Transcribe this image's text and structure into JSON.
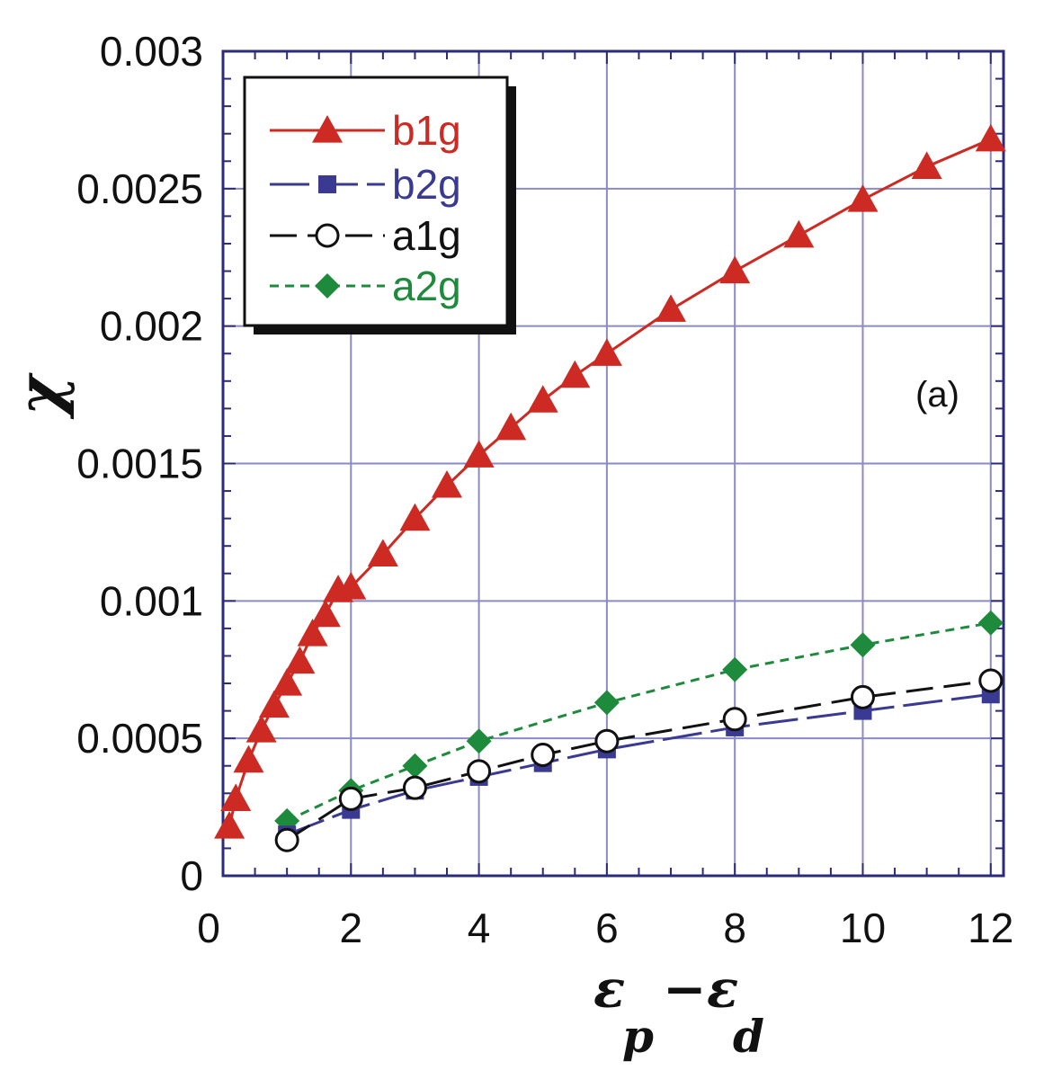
{
  "chart_data": {
    "type": "line",
    "title": "",
    "xlabel": "ε p −ε d",
    "xlabel_parts": {
      "eps1": "ε",
      "sub1": "p",
      "minus": "−",
      "eps2": "ε",
      "sub2": "d"
    },
    "ylabel": "χ",
    "panel_label": "(a)",
    "xlim": [
      0,
      12.2
    ],
    "ylim": [
      0,
      0.003
    ],
    "x_ticks": [
      0,
      2,
      4,
      6,
      8,
      10,
      12
    ],
    "x_tick_labels": [
      "0",
      "2",
      "4",
      "6",
      "8",
      "10",
      "12"
    ],
    "y_ticks": [
      0,
      0.0005,
      0.001,
      0.0015,
      0.002,
      0.0025,
      0.003
    ],
    "y_tick_labels": [
      "0",
      "0.0005",
      "0.001",
      "0.0015",
      "0.002",
      "0.0025",
      "0.003"
    ],
    "grid": true,
    "legend_position": "top-left",
    "series": [
      {
        "name": "b1g",
        "color": "#cc2a22",
        "marker": "triangle",
        "dash": "solid",
        "x": [
          0.1,
          0.2,
          0.4,
          0.6,
          0.8,
          1.0,
          1.2,
          1.4,
          1.6,
          1.8,
          2.0,
          2.5,
          3.0,
          3.5,
          4.0,
          4.5,
          5.0,
          5.5,
          6.0,
          7.0,
          8.0,
          9.0,
          10.0,
          11.0,
          12.0
        ],
        "y": [
          0.00018,
          0.00028,
          0.00042,
          0.00053,
          0.00062,
          0.0007,
          0.00078,
          0.00088,
          0.00095,
          0.00104,
          0.00105,
          0.00117,
          0.0013,
          0.00142,
          0.00153,
          0.00163,
          0.00173,
          0.00182,
          0.0019,
          0.00206,
          0.0022,
          0.00233,
          0.00246,
          0.00258,
          0.00268
        ]
      },
      {
        "name": "b2g",
        "color": "#3b3a92",
        "marker": "square",
        "dash": "long-dash",
        "x": [
          1,
          2,
          3,
          4,
          5,
          6,
          8,
          10,
          12
        ],
        "y": [
          0.00015,
          0.00024,
          0.00031,
          0.00036,
          0.00041,
          0.00046,
          0.00054,
          0.0006,
          0.00066
        ]
      },
      {
        "name": "a1g",
        "color": "#111111",
        "marker": "circle",
        "dash": "dash",
        "x": [
          1,
          2,
          3,
          4,
          5,
          6,
          8,
          10,
          12
        ],
        "y": [
          0.00013,
          0.00028,
          0.00032,
          0.00038,
          0.00044,
          0.00049,
          0.00057,
          0.00065,
          0.00071
        ]
      },
      {
        "name": "a2g",
        "color": "#1e8a3c",
        "marker": "diamond",
        "dash": "short-dash",
        "x": [
          1,
          2,
          3,
          4,
          6,
          8,
          10,
          12
        ],
        "y": [
          0.0002,
          0.00031,
          0.0004,
          0.00049,
          0.00063,
          0.00075,
          0.00084,
          0.00092
        ]
      }
    ]
  }
}
